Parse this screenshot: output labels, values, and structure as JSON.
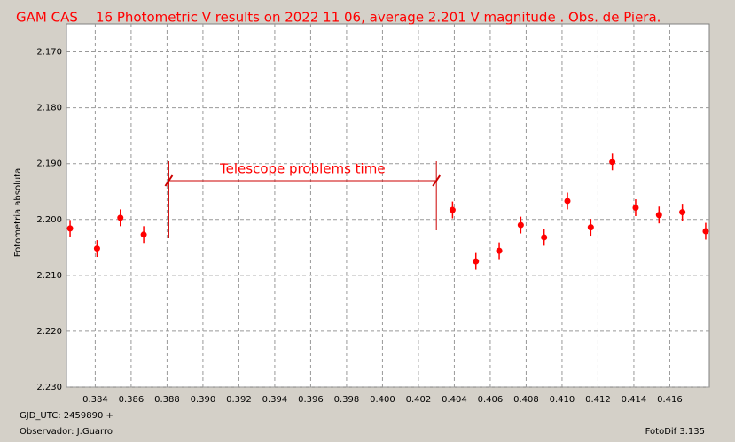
{
  "chart_data": {
    "type": "scatter",
    "object": "GAM CAS",
    "title": "16 Photometric V results on 2022 11 06,  average 2.201 V magnitude . Obs. de Piera.",
    "ylabel": "Fotometria absoluta",
    "xlabel": "GJD_UTC: 2459890 +",
    "observer": "Observador: J.Guarro",
    "software": "FotoDif 3.135",
    "color": "#ff0000",
    "grid": true,
    "annotation": {
      "text": "Telescope problems time",
      "x_start": 0.3881,
      "x_end": 0.403
    },
    "series": [
      {
        "name": "V",
        "color": "#ff0000",
        "x": [
          0.3826,
          0.3841,
          0.3854,
          0.3867,
          0.4039,
          0.4052,
          0.4065,
          0.4077,
          0.409,
          0.4103,
          0.4116,
          0.4128,
          0.4141,
          0.4154,
          0.4167,
          0.418
        ],
        "values": [
          2.2016,
          2.2052,
          2.1997,
          2.2027,
          2.1983,
          2.2075,
          2.2056,
          2.201,
          2.2032,
          2.1967,
          2.2014,
          2.1897,
          2.1979,
          2.1992,
          2.1987,
          2.2021
        ],
        "errors": [
          0.0015,
          0.0015,
          0.0015,
          0.0015,
          0.0015,
          0.0015,
          0.0015,
          0.0015,
          0.0015,
          0.0015,
          0.0015,
          0.0015,
          0.0015,
          0.0015,
          0.0015,
          0.0015
        ]
      }
    ],
    "xlim": [
      0.3824,
      0.4182
    ],
    "xticks": [
      0.384,
      0.386,
      0.388,
      {
        "value": 0.39,
        "label": "0.390"
      },
      0.392,
      0.394,
      0.396,
      0.398,
      {
        "value": 0.4,
        "label": "0.400"
      },
      0.402,
      0.404,
      0.406,
      0.408,
      {
        "value": 0.41,
        "label": "0.410"
      },
      0.412,
      0.414,
      0.416
    ],
    "ylim": [
      2.23,
      2.165
    ],
    "yticks": [
      {
        "value": 2.17,
        "label": "2.170"
      },
      {
        "value": 2.18,
        "label": "2.180"
      },
      {
        "value": 2.19,
        "label": "2.190"
      },
      {
        "value": 2.2,
        "label": "2.200"
      },
      {
        "value": 2.21,
        "label": "2.210"
      },
      {
        "value": 2.22,
        "label": "2.220"
      },
      {
        "value": 2.23,
        "label": "2.230"
      }
    ]
  }
}
